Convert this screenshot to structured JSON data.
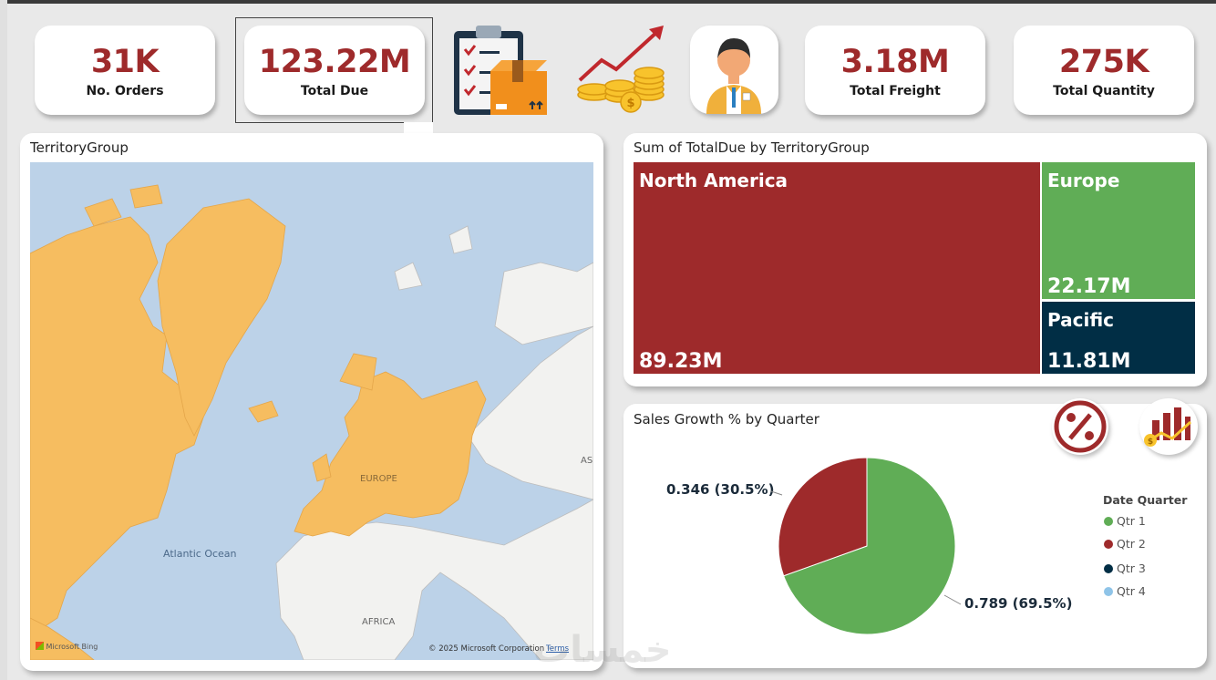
{
  "kpis": [
    {
      "value": "31K",
      "label": "No. Orders"
    },
    {
      "value": "123.22M",
      "label": "Total Due"
    },
    {
      "value": "3.18M",
      "label": "Total Freight"
    },
    {
      "value": "275K",
      "label": "Total Quantity"
    }
  ],
  "icons": {
    "orders": "clipboard-package-icon",
    "growth": "coins-growth-icon",
    "customer": "salesperson-avatar-icon",
    "percent": "percent-icon",
    "sales": "sales-chart-icon"
  },
  "map_panel": {
    "title": "TerritoryGroup",
    "labels": {
      "europe": "EUROPE",
      "ocean": "Atlantic Ocean",
      "africa": "AFRICA",
      "asia": "AS"
    },
    "attribution": "© 2025 Microsoft Corporation",
    "terms": "Terms",
    "bing": "Microsoft Bing",
    "colors": {
      "water": "#bcd2e8",
      "land": "#f2f2f0",
      "highlight": "#f6bd60"
    }
  },
  "treemap": {
    "title": "Sum of TotalDue by TerritoryGroup",
    "items": [
      {
        "name": "North America",
        "value": "89.23M",
        "color": "#9e2a2b"
      },
      {
        "name": "Europe",
        "value": "22.17M",
        "color": "#60ad56"
      },
      {
        "name": "Pacific",
        "value": "11.81M",
        "color": "#012e45"
      }
    ]
  },
  "pie": {
    "title": "Sales Growth % by Quarter",
    "label_qtr2": "0.346 (30.5%)",
    "label_qtr1": "0.789 (69.5%)",
    "legend_title": "Date Quarter",
    "legend": [
      {
        "label": "Qtr 1",
        "color": "#60ad56"
      },
      {
        "label": "Qtr 2",
        "color": "#9e2a2b"
      },
      {
        "label": "Qtr 3",
        "color": "#012e45"
      },
      {
        "label": "Qtr 4",
        "color": "#8fc4e8"
      }
    ]
  },
  "chart_data": {
    "type": "pie",
    "title": "Sales Growth % by Quarter",
    "categories": [
      "Qtr 1",
      "Qtr 2"
    ],
    "values": [
      0.789,
      0.346
    ],
    "percents": [
      69.5,
      30.5
    ],
    "legend": [
      "Qtr 1",
      "Qtr 2",
      "Qtr 3",
      "Qtr 4"
    ],
    "legend_placement": "right"
  },
  "watermark": "خمسات"
}
